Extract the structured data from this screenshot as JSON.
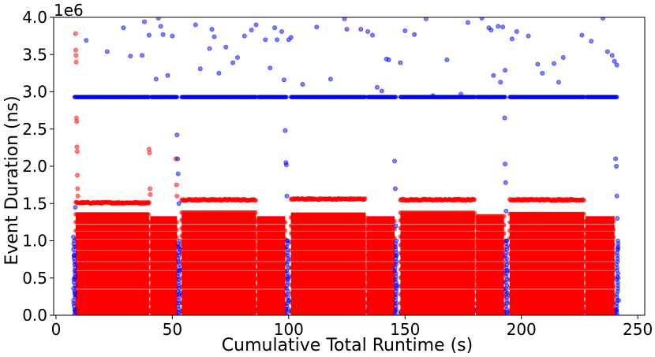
{
  "chart_data": {
    "type": "scatter",
    "title": "",
    "xlabel": "Cumulative Total Runtime (s)",
    "ylabel": "Event Duration (ns)",
    "y_offset_label": "1e6",
    "xlim": [
      -1,
      253
    ],
    "ylim": [
      0,
      4000000
    ],
    "x_ticks": [
      0,
      50,
      100,
      150,
      200,
      250
    ],
    "x_tick_labels": [
      "0",
      "50",
      "100",
      "150",
      "200",
      "250"
    ],
    "y_ticks": [
      0,
      500000,
      1000000,
      1500000,
      2000000,
      2500000,
      3000000,
      3500000,
      4000000
    ],
    "y_tick_labels": [
      "0.0",
      "0.5",
      "1.0",
      "1.5",
      "2.0",
      "2.5",
      "3.0",
      "3.5",
      "4.0"
    ],
    "grid": false,
    "legend": "none",
    "series": [
      {
        "color": "#0000ff",
        "segments": [
          {
            "x_start": 8,
            "x_end": 40
          },
          {
            "x_start": 41,
            "x_end": 52
          },
          {
            "x_start": 54,
            "x_end": 86
          },
          {
            "x_start": 87,
            "x_end": 99
          },
          {
            "x_start": 101,
            "x_end": 133
          },
          {
            "x_start": 134,
            "x_end": 146
          },
          {
            "x_start": 148,
            "x_end": 180
          },
          {
            "x_start": 181,
            "x_end": 193
          },
          {
            "x_start": 195,
            "x_end": 227
          },
          {
            "x_start": 228,
            "x_end": 241
          }
        ],
        "band_y": 2930000,
        "outliers": [
          [
            13,
            3690000
          ],
          [
            22,
            3540000
          ],
          [
            29,
            3860000
          ],
          [
            32,
            3480000
          ],
          [
            37,
            3490000
          ],
          [
            38,
            3940000
          ],
          [
            40,
            3760000
          ],
          [
            43,
            3170000
          ],
          [
            44,
            3990000
          ],
          [
            45,
            3880000
          ],
          [
            46,
            3770000
          ],
          [
            48,
            3220000
          ],
          [
            50,
            3750000
          ],
          [
            60,
            3900000
          ],
          [
            62,
            3310000
          ],
          [
            66,
            3580000
          ],
          [
            67,
            3840000
          ],
          [
            68,
            3740000
          ],
          [
            70,
            3250000
          ],
          [
            73,
            3600000
          ],
          [
            76,
            3390000
          ],
          [
            78,
            3460000
          ],
          [
            81,
            3750000
          ],
          [
            84,
            3830000
          ],
          [
            86,
            3900000
          ],
          [
            90,
            3700000
          ],
          [
            92,
            3320000
          ],
          [
            94,
            3860000
          ],
          [
            95,
            3700000
          ],
          [
            97,
            3810000
          ],
          [
            98,
            3160000
          ],
          [
            100,
            3700000
          ],
          [
            101,
            3730000
          ],
          [
            106,
            3100000
          ],
          [
            112,
            3870000
          ],
          [
            118,
            3170000
          ],
          [
            124,
            3980000
          ],
          [
            125,
            3840000
          ],
          [
            131,
            3840000
          ],
          [
            134,
            3810000
          ],
          [
            136,
            3760000
          ],
          [
            138,
            3060000
          ],
          [
            140,
            3010000
          ],
          [
            142,
            3440000
          ],
          [
            143,
            3430000
          ],
          [
            148,
            3390000
          ],
          [
            150,
            3820000
          ],
          [
            154,
            3770000
          ],
          [
            159,
            3980000
          ],
          [
            162,
            2950000
          ],
          [
            168,
            3430000
          ],
          [
            174,
            2970000
          ],
          [
            177,
            3930000
          ],
          [
            183,
            3990000
          ],
          [
            186,
            3860000
          ],
          [
            187,
            3830000
          ],
          [
            188,
            3220000
          ],
          [
            190,
            3880000
          ],
          [
            191,
            3130000
          ],
          [
            192,
            3870000
          ],
          [
            193,
            3290000
          ],
          [
            196,
            3710000
          ],
          [
            198,
            3810000
          ],
          [
            203,
            3750000
          ],
          [
            207,
            3370000
          ],
          [
            209,
            3250000
          ],
          [
            214,
            3380000
          ],
          [
            216,
            3130000
          ],
          [
            218,
            3460000
          ],
          [
            226,
            3760000
          ],
          [
            230,
            3680000
          ],
          [
            235,
            3990000
          ],
          [
            237,
            3540000
          ],
          [
            239,
            3490000
          ],
          [
            240,
            3410000
          ],
          [
            241,
            3360000
          ]
        ],
        "spikes": [
          [
            7.5,
            1050000
          ],
          [
            7.8,
            800000
          ],
          [
            8,
            500000
          ],
          [
            8.2,
            300000
          ],
          [
            8.3,
            1450000
          ],
          [
            52,
            2420000
          ],
          [
            52.3,
            2100000
          ],
          [
            52.5,
            1900000
          ],
          [
            52.8,
            1500000
          ],
          [
            53,
            900000
          ],
          [
            53.2,
            600000
          ],
          [
            53.4,
            300000
          ],
          [
            98.5,
            2480000
          ],
          [
            98.8,
            2050000
          ],
          [
            99,
            2020000
          ],
          [
            99.2,
            1600000
          ],
          [
            99.5,
            1000000
          ],
          [
            99.8,
            500000
          ],
          [
            100,
            200000
          ],
          [
            145.5,
            2070000
          ],
          [
            145.8,
            1700000
          ],
          [
            146,
            1200000
          ],
          [
            146.2,
            800000
          ],
          [
            146.5,
            400000
          ],
          [
            192.8,
            2650000
          ],
          [
            193,
            2030000
          ],
          [
            193.2,
            1780000
          ],
          [
            193.4,
            1400000
          ],
          [
            193.6,
            1000000
          ],
          [
            193.8,
            600000
          ],
          [
            194,
            300000
          ],
          [
            240.5,
            2100000
          ],
          [
            240.8,
            2000000
          ],
          [
            241,
            1600000
          ],
          [
            241.2,
            1300000
          ],
          [
            241.4,
            900000
          ],
          [
            241.6,
            500000
          ],
          [
            241.8,
            200000
          ]
        ]
      },
      {
        "color": "#ff0000",
        "blocks": [
          {
            "x_start": 8.5,
            "x_end": 40,
            "top": 1380000,
            "band": 1510000
          },
          {
            "x_start": 40.5,
            "x_end": 52,
            "top": 1330000,
            "band": 0
          },
          {
            "x_start": 54,
            "x_end": 86,
            "top": 1380000,
            "band": 1550000
          },
          {
            "x_start": 86.5,
            "x_end": 98.5,
            "top": 1330000,
            "band": 0
          },
          {
            "x_start": 101,
            "x_end": 133,
            "top": 1380000,
            "band": 1560000
          },
          {
            "x_start": 133.5,
            "x_end": 145.5,
            "top": 1330000,
            "band": 0
          },
          {
            "x_start": 148,
            "x_end": 180,
            "top": 1380000,
            "band": 1550000
          },
          {
            "x_start": 180.5,
            "x_end": 192.5,
            "top": 1330000,
            "band": 0
          },
          {
            "x_start": 195,
            "x_end": 227,
            "top": 1380000,
            "band": 1550000
          },
          {
            "x_start": 227.5,
            "x_end": 240,
            "top": 1330000,
            "band": 0
          }
        ],
        "spikes": [
          [
            8.4,
            3780000
          ],
          [
            8.5,
            3560000
          ],
          [
            8.6,
            3490000
          ],
          [
            8.7,
            3400000
          ],
          [
            8.8,
            2650000
          ],
          [
            8.9,
            2600000
          ],
          [
            9,
            2260000
          ],
          [
            9.1,
            2200000
          ],
          [
            9.2,
            1880000
          ],
          [
            9.3,
            1700000
          ],
          [
            9.4,
            1600000
          ],
          [
            40,
            2230000
          ],
          [
            40.2,
            2180000
          ],
          [
            40.4,
            1700000
          ],
          [
            40.5,
            1620000
          ],
          [
            51.5,
            2100000
          ],
          [
            51.8,
            1750000
          ],
          [
            52,
            1600000
          ]
        ]
      }
    ]
  }
}
